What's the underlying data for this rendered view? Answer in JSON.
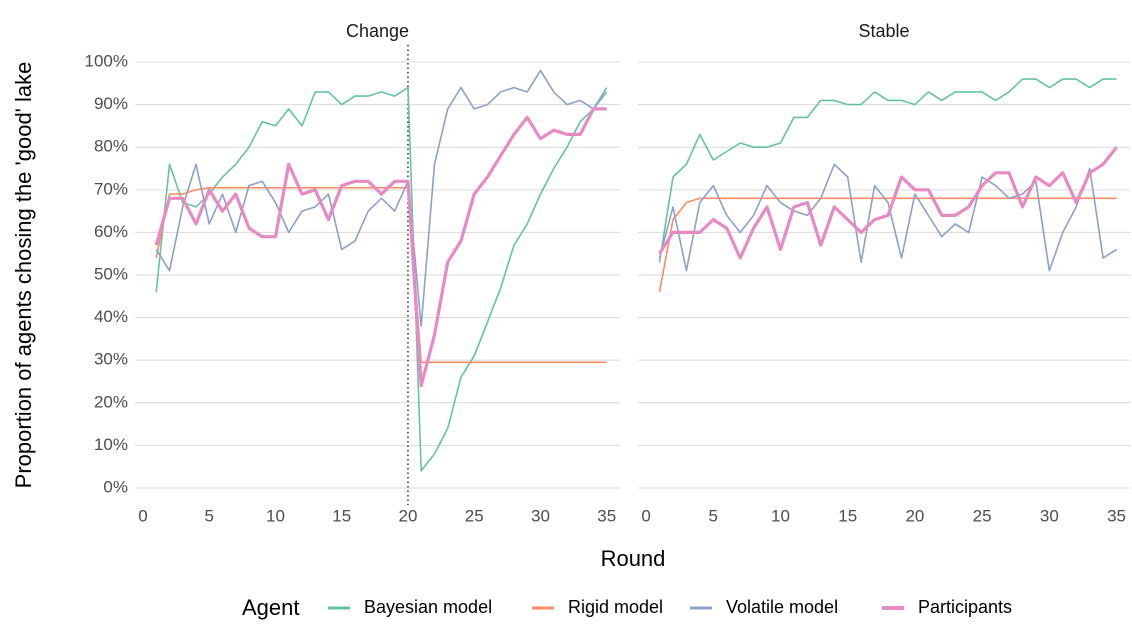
{
  "chart_data": {
    "type": "line",
    "x_label": "Round",
    "y_label": "Proportion of agents chosing the 'good' lake",
    "legend_title": "Agent",
    "legend": [
      {
        "name": "Bayesian model",
        "color": "#66c2a5"
      },
      {
        "name": "Rigid model",
        "color": "#fc8d62"
      },
      {
        "name": "Volatile model",
        "color": "#8da0cb"
      },
      {
        "name": "Participants",
        "color": "#e78ac3"
      }
    ],
    "x": [
      1,
      2,
      3,
      4,
      5,
      6,
      7,
      8,
      9,
      10,
      11,
      12,
      13,
      14,
      15,
      16,
      17,
      18,
      19,
      20,
      21,
      22,
      23,
      24,
      25,
      26,
      27,
      28,
      29,
      30,
      31,
      32,
      33,
      34,
      35
    ],
    "xlim": [
      -0.6,
      36
    ],
    "xticks": [
      0,
      5,
      10,
      15,
      20,
      25,
      30,
      35
    ],
    "ylim": [
      -4,
      104
    ],
    "yticks": [
      {
        "value": 0,
        "label": "0%"
      },
      {
        "value": 10,
        "label": "10%"
      },
      {
        "value": 20,
        "label": "20%"
      },
      {
        "value": 30,
        "label": "30%"
      },
      {
        "value": 40,
        "label": "40%"
      },
      {
        "value": 50,
        "label": "50%"
      },
      {
        "value": 60,
        "label": "60%"
      },
      {
        "value": 70,
        "label": "70%"
      },
      {
        "value": 80,
        "label": "80%"
      },
      {
        "value": 90,
        "label": "90%"
      },
      {
        "value": 100,
        "label": "100%"
      }
    ],
    "grid": true,
    "panels": [
      {
        "title": "Change",
        "vline": 20,
        "series": [
          {
            "values": [
              46,
              76,
              67,
              66,
              69,
              73,
              76,
              80,
              86,
              85,
              89,
              85,
              93,
              93,
              90,
              92,
              92,
              93,
              92,
              94,
              4,
              8,
              14,
              26,
              31,
              39,
              47,
              57,
              62,
              69,
              75,
              80,
              86,
              89,
              94
            ]
          },
          {
            "values": [
              54,
              69,
              69,
              70,
              70.5,
              70.5,
              70.5,
              70.5,
              70.5,
              70.5,
              70.5,
              70.5,
              70.5,
              70.5,
              70.5,
              70.5,
              70.5,
              70.5,
              70.5,
              70.5,
              29.5,
              29.5,
              29.5,
              29.5,
              29.5,
              29.5,
              29.5,
              29.5,
              29.5,
              29.5,
              29.5,
              29.5,
              29.5,
              29.5,
              29.5
            ]
          },
          {
            "values": [
              56,
              51,
              66,
              76,
              62,
              69,
              60,
              71,
              72,
              67,
              60,
              65,
              66,
              69,
              56,
              58,
              65,
              68,
              65,
              72,
              38,
              76,
              89,
              94,
              89,
              90,
              93,
              94,
              93,
              98,
              93,
              90,
              91,
              89,
              93
            ]
          },
          {
            "values": [
              57,
              68,
              68,
              62,
              70,
              65,
              69,
              61,
              59,
              59,
              76,
              69,
              70,
              63,
              71,
              72,
              72,
              69,
              72,
              72,
              24,
              36,
              53,
              58,
              69,
              73,
              78,
              83,
              87,
              82,
              84,
              83,
              83,
              89,
              89
            ]
          }
        ]
      },
      {
        "title": "Stable",
        "series": [
          {
            "values": [
              53,
              73,
              76,
              83,
              77,
              79,
              81,
              80,
              80,
              81,
              87,
              87,
              91,
              91,
              90,
              90,
              93,
              91,
              91,
              90,
              93,
              91,
              93,
              93,
              93,
              91,
              93,
              96,
              96,
              94,
              96,
              96,
              94,
              96,
              96
            ]
          },
          {
            "values": [
              46,
              63,
              67,
              68,
              68,
              68,
              68,
              68,
              68,
              68,
              68,
              68,
              68,
              68,
              68,
              68,
              68,
              68,
              68,
              68,
              68,
              68,
              68,
              68,
              68,
              68,
              68,
              68,
              68,
              68,
              68,
              68,
              68,
              68,
              68
            ]
          },
          {
            "values": [
              54,
              66,
              51,
              67,
              71,
              64,
              60,
              64,
              71,
              67,
              65,
              64,
              68,
              76,
              73,
              53,
              71,
              67,
              54,
              69,
              64,
              59,
              62,
              60,
              73,
              71,
              68,
              69,
              72,
              51,
              60,
              66,
              75,
              54,
              56
            ]
          },
          {
            "values": [
              55,
              60,
              60,
              60,
              63,
              61,
              54,
              61,
              66,
              56,
              66,
              67,
              57,
              66,
              63,
              60,
              63,
              64,
              73,
              70,
              70,
              64,
              64,
              66,
              71,
              74,
              74,
              66,
              73,
              71,
              74,
              67,
              74,
              76,
              80
            ]
          }
        ]
      }
    ]
  }
}
